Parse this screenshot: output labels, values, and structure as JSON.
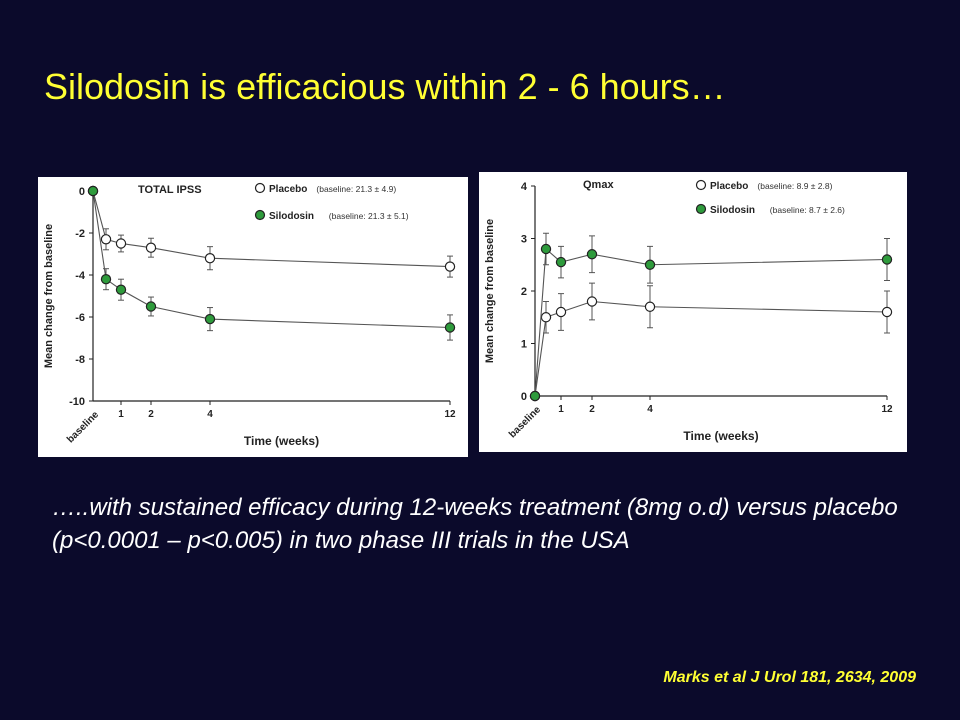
{
  "slide": {
    "title": "Silodosin is efficacious within 2 - 6 hours…",
    "caption": "…..with sustained efficacy during 12-weeks treatment (8mg o.d) versus placebo (p<0.0001 – p<0.005) in two phase III trials in the USA",
    "citation": "Marks et al J Urol 181, 2634, 2009"
  },
  "colors": {
    "background": "#0b0a2b",
    "title": "#ffff33",
    "caption": "#ffffff",
    "silodosin_marker": "#2e9b3c",
    "placebo_marker": "#ffffff"
  },
  "chart_data": [
    {
      "type": "line",
      "title": "TOTAL IPSS",
      "xlabel": "Time (weeks)",
      "ylabel": "Mean change from baseline",
      "x": [
        0,
        0.25,
        1,
        2,
        4,
        12
      ],
      "x_tick_labels": [
        "baseline",
        "1",
        "2",
        "4",
        "12"
      ],
      "ylim": [
        -10,
        0
      ],
      "y_ticks": [
        "0",
        "-2",
        "-4",
        "-6",
        "-8",
        "-10"
      ],
      "y_tick_values": [
        0,
        -2,
        -4,
        -6,
        -8,
        -10
      ],
      "grid": false,
      "legend_position": "top-right",
      "series": [
        {
          "name": "Placebo",
          "legend_label": "Placebo",
          "baseline_note": "(baseline: 21.3 ± 4.9)",
          "marker": "open-circle",
          "values": [
            0,
            -2.3,
            -2.5,
            -2.7,
            -3.2,
            -3.6
          ],
          "errors": [
            0,
            0.5,
            0.4,
            0.45,
            0.55,
            0.5
          ]
        },
        {
          "name": "Silodosin",
          "legend_label": "Silodosin",
          "baseline_note": "(baseline: 21.3 ± 5.1)",
          "marker": "filled-circle",
          "values": [
            0,
            -4.2,
            -4.7,
            -5.5,
            -6.1,
            -6.5
          ],
          "errors": [
            0,
            0.5,
            0.5,
            0.45,
            0.55,
            0.6
          ]
        }
      ]
    },
    {
      "type": "line",
      "title": "Qmax",
      "xlabel": "Time (weeks)",
      "ylabel": "Mean change from baseline",
      "x": [
        0,
        0.25,
        1,
        2,
        4,
        12
      ],
      "x_tick_labels": [
        "baseline",
        "1",
        "2",
        "4",
        "12"
      ],
      "ylim": [
        0,
        4
      ],
      "y_ticks": [
        "4",
        "3",
        "2",
        "1",
        "0"
      ],
      "y_tick_values": [
        4,
        3,
        2,
        1,
        0
      ],
      "grid": false,
      "legend_position": "top-right",
      "series": [
        {
          "name": "Placebo",
          "legend_label": "Placebo",
          "baseline_note": "(baseline: 8.9 ± 2.8)",
          "marker": "open-circle",
          "values": [
            0,
            1.5,
            1.6,
            1.8,
            1.7,
            1.6
          ],
          "errors": [
            0,
            0.3,
            0.35,
            0.35,
            0.4,
            0.4
          ]
        },
        {
          "name": "Silodosin",
          "legend_label": "Silodosin",
          "baseline_note": "(baseline: 8.7 ± 2.6)",
          "marker": "filled-circle",
          "values": [
            0,
            2.8,
            2.55,
            2.7,
            2.5,
            2.6
          ],
          "errors": [
            0,
            0.3,
            0.3,
            0.35,
            0.35,
            0.4
          ]
        }
      ]
    }
  ]
}
